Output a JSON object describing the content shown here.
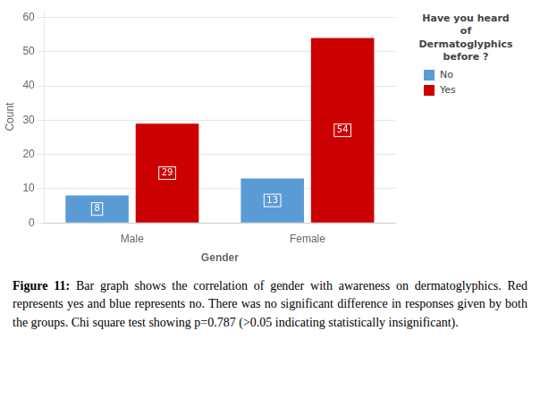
{
  "chart_data": {
    "type": "bar",
    "categories": [
      "Male",
      "Female"
    ],
    "series": [
      {
        "name": "No",
        "color": "#5B9BD5",
        "values": [
          8,
          13
        ]
      },
      {
        "name": "Yes",
        "color": "#CC0000",
        "values": [
          29,
          54
        ]
      }
    ],
    "xlabel": "Gender",
    "ylabel": "Count",
    "ylim": [
      0,
      62
    ],
    "yticks": [
      0,
      10,
      20,
      30,
      40,
      50,
      60
    ],
    "grid": true,
    "data_labels": true,
    "legend": "right",
    "legend_title": "Have you heard\nof\nDermatoglyphics\nbefore ?",
    "caption": "Figure 11: Bar graph shows the correlation of gender with awareness on dermatoglyphics. Red represents yes and blue represents no. There was no significant difference in responses given by both the groups. Chi square test showing p=0.787 (>0.05 indicating statistically insignificant)."
  }
}
